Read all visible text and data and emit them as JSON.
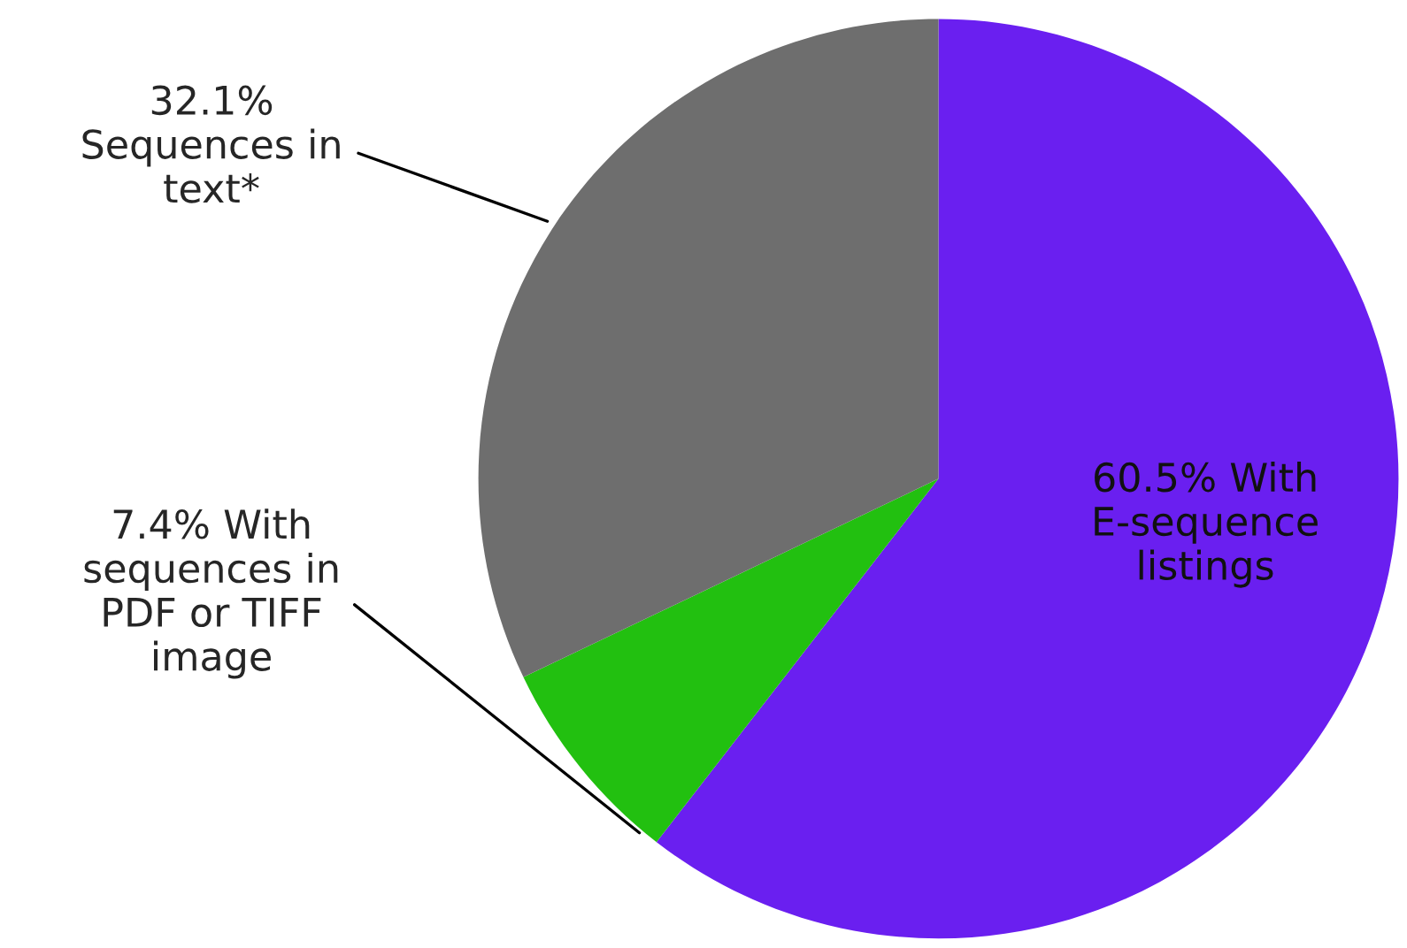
{
  "chart_data": {
    "type": "pie",
    "categories": [
      "With E-sequence listings",
      "With sequences in PDF or TIFF image",
      "Sequences in text*"
    ],
    "values": [
      60.5,
      7.4,
      32.1
    ],
    "value_labels": [
      "60.5%",
      "7.4%",
      "32.1%"
    ],
    "colors": [
      "#6a1ff0",
      "#22c010",
      "#6e6e6e"
    ],
    "legend": false
  }
}
